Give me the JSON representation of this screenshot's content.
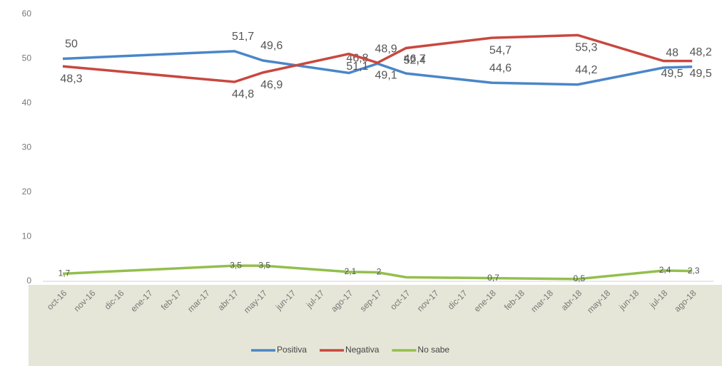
{
  "chart_data": {
    "type": "line",
    "categories": [
      "oct-16",
      "nov-16",
      "dic-16",
      "ene-17",
      "feb-17",
      "mar-17",
      "abr-17",
      "may-17",
      "jun-17",
      "jul-17",
      "ago-17",
      "sep-17",
      "oct-17",
      "nov-17",
      "dic-17",
      "ene-18",
      "feb-18",
      "mar-18",
      "abr-18",
      "may-18",
      "jun-18",
      "jul-18",
      "ago-18"
    ],
    "ylim": [
      0,
      60
    ],
    "yticks": [
      0,
      10,
      20,
      30,
      40,
      50,
      60
    ],
    "grid": false,
    "legend": "bottom",
    "series": [
      {
        "name": "Positiva",
        "color": "#4a86c8",
        "values": [
          50,
          null,
          null,
          null,
          null,
          null,
          51.7,
          49.6,
          null,
          null,
          46.8,
          48.9,
          46.7,
          null,
          null,
          44.6,
          null,
          null,
          44.2,
          null,
          null,
          48,
          48.2
        ],
        "value_labels": [
          "50",
          null,
          null,
          null,
          null,
          null,
          "51,7",
          "49,6",
          null,
          null,
          "46,8",
          "48,9",
          "46,7",
          null,
          null,
          "44,6",
          null,
          null,
          "44,2",
          null,
          null,
          "48",
          "48,2"
        ]
      },
      {
        "name": "Negativa",
        "color": "#c9473f",
        "values": [
          48.3,
          null,
          null,
          null,
          null,
          null,
          44.8,
          46.9,
          null,
          null,
          51.1,
          49.1,
          52.4,
          null,
          null,
          54.7,
          null,
          null,
          55.3,
          null,
          null,
          49.5,
          49.5
        ],
        "value_labels": [
          "48,3",
          null,
          null,
          null,
          null,
          null,
          "44,8",
          "46,9",
          null,
          null,
          "51,1",
          "49,1",
          "52,4",
          null,
          null,
          "54,7",
          null,
          null,
          "55,3",
          null,
          null,
          "49,5",
          "49,5"
        ]
      },
      {
        "name": "No sabe",
        "color": "#93bf4c",
        "values": [
          1.7,
          null,
          null,
          null,
          null,
          null,
          3.5,
          3.5,
          null,
          null,
          2.1,
          2,
          0.9,
          null,
          null,
          0.7,
          null,
          null,
          0.5,
          null,
          null,
          2.4,
          2.3
        ],
        "value_labels": [
          "1,7",
          null,
          null,
          null,
          null,
          null,
          "3,5",
          "3,5",
          null,
          null,
          "2,1",
          "2",
          null,
          null,
          null,
          "0,7",
          null,
          null,
          "0,5",
          null,
          null,
          "2,4",
          "2,3"
        ]
      }
    ]
  }
}
